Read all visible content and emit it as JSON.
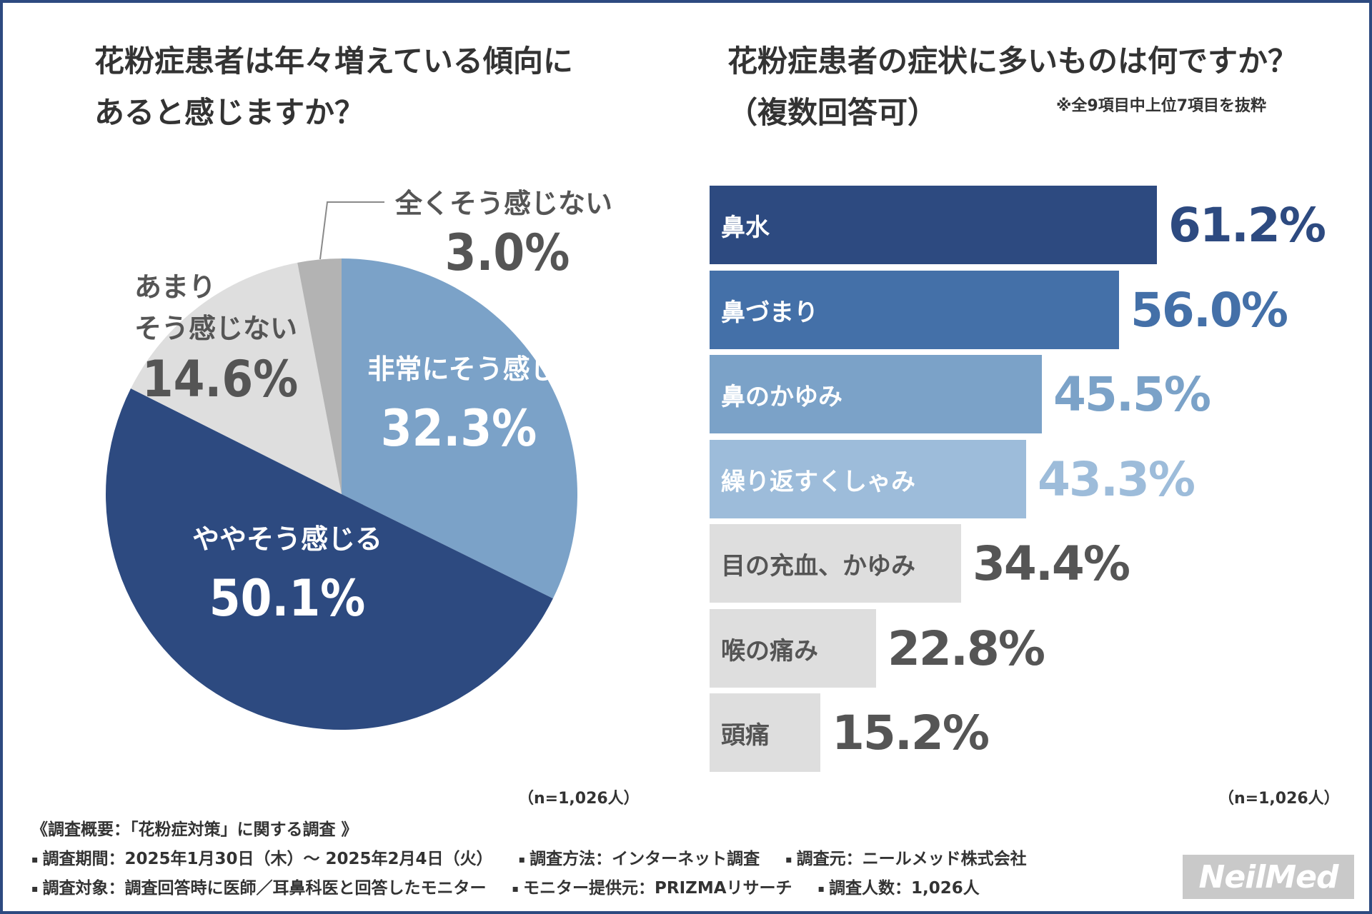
{
  "colors": {
    "navy": "#2d4a80",
    "blue": "#4470a8",
    "mid_blue": "#7ba2c8",
    "light_blue": "#9dbcda",
    "light_gray": "#dedede",
    "mid_gray": "#b3b3b3",
    "text_dark": "#333333",
    "text_gray": "#555555"
  },
  "left_panel": {
    "title_line1": "花粉症患者は年々増えている傾向に",
    "title_line2": "あると感じますか？",
    "n_label": "（n=1,026人）"
  },
  "right_panel": {
    "title_line1": "花粉症患者の症状に多いものは何ですか？",
    "title_line2": "（複数回答可）",
    "note": "※全9項目中上位7項目を抜粋",
    "n_label": "（n=1,026人）"
  },
  "chart_data": [
    {
      "type": "pie",
      "title": "花粉症患者は年々増えている傾向にあると感じますか？",
      "start": "12 o'clock, clockwise",
      "slices": [
        {
          "label": "非常にそう感じる",
          "value": 32.3,
          "pct_label": "32.3%",
          "color": "#7ba2c8",
          "label_color": "#ffffff",
          "value_color": "#ffffff"
        },
        {
          "label": "ややそう感じる",
          "value": 50.1,
          "pct_label": "50.1%",
          "color": "#2d4a80",
          "label_color": "#ffffff",
          "value_color": "#ffffff"
        },
        {
          "label": "あまり\nそう感じない",
          "value": 14.6,
          "pct_label": "14.6%",
          "color": "#dedede",
          "label_color": "#555555",
          "value_color": "#555555"
        },
        {
          "label": "全くそう感じない",
          "value": 3.0,
          "pct_label": "3.0%",
          "color": "#b3b3b3",
          "label_color": "#555555",
          "value_color": "#555555"
        }
      ],
      "n": "n=1,026人"
    },
    {
      "type": "bar",
      "orientation": "horizontal",
      "title": "花粉症患者の症状に多いものは何ですか？（複数回答可）",
      "xlim": [
        0,
        61.2
      ],
      "bars": [
        {
          "label": "鼻水",
          "value": 61.2,
          "value_label": "61.2%",
          "color": "#2d4a80",
          "label_color": "#ffffff",
          "value_color": "#2d4a80"
        },
        {
          "label": "鼻づまり",
          "value": 56.0,
          "value_label": "56.0%",
          "color": "#4470a8",
          "label_color": "#ffffff",
          "value_color": "#4470a8"
        },
        {
          "label": "鼻のかゆみ",
          "value": 45.5,
          "value_label": "45.5%",
          "color": "#7ba2c8",
          "label_color": "#ffffff",
          "value_color": "#7ba2c8"
        },
        {
          "label": "繰り返すくしゃみ",
          "value": 43.3,
          "value_label": "43.3%",
          "color": "#9dbcda",
          "label_color": "#ffffff",
          "value_color": "#9dbcda"
        },
        {
          "label": "目の充血、かゆみ",
          "value": 34.4,
          "value_label": "34.4%",
          "color": "#dedede",
          "label_color": "#555555",
          "value_color": "#555555"
        },
        {
          "label": "喉の痛み",
          "value": 22.8,
          "value_label": "22.8%",
          "color": "#dedede",
          "label_color": "#555555",
          "value_color": "#555555"
        },
        {
          "label": "頭痛",
          "value": 15.2,
          "value_label": "15.2%",
          "color": "#dedede",
          "label_color": "#555555",
          "value_color": "#555555"
        }
      ],
      "n": "n=1,026人"
    }
  ],
  "footer": {
    "line1": "《調査概要：「花粉症対策」に関する調査 》",
    "period": "調査期間：2025年1月30日（木）～ 2025年2月4日（火）",
    "method": "調査方法：インターネット調査",
    "source": "調査元：ニールメッド株式会社",
    "target": "調査対象：調査回答時に医師／耳鼻科医と回答したモニター",
    "provider": "モニター提供元：PRIZMAリサーチ",
    "count": "調査人数：1,026人",
    "bullet": "▪"
  },
  "logo": {
    "text": "NeilMed"
  }
}
